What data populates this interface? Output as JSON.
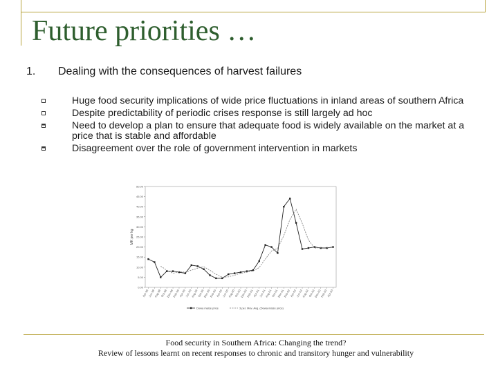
{
  "slide": {
    "title": "Future priorities …",
    "main_item": {
      "number": "1.",
      "text": "Dealing with the consequences of harvest failures"
    },
    "bullets": [
      "Huge food security implications of wide price fluctuations in inland areas of southern Africa",
      "Despite predictability of periodic crises response is still largely ad hoc",
      "Need to develop a plan to ensure that adequate food is widely available on the market at a price that is stable and affordable",
      "Disagreement over the role of government intervention in markets"
    ],
    "footer_line1": "Food security in Southern Africa: Changing the trend?",
    "footer_line2": "Review of lessons learnt on recent responses to chronic and transitory hunger and vulnerability"
  },
  "colors": {
    "title": "#2e5e2e",
    "frame": "#b8a33c"
  },
  "chart_data": {
    "type": "line",
    "ylabel": "MK per kg",
    "ylim": [
      0,
      50
    ],
    "yticks": [
      "50.00",
      "45.00",
      "40.00",
      "35.00",
      "30.00",
      "25.00",
      "20.00",
      "15.00",
      "10.00",
      "5.00",
      "0.00"
    ],
    "categories": [
      "Apr-98",
      "Jun-98",
      "Aug-98",
      "Oct-98",
      "Dec-98",
      "Feb-99",
      "Apr-99",
      "Jun-99",
      "Aug-99",
      "Oct-99",
      "Dec-99",
      "Feb-00",
      "Apr-00",
      "Jun-00",
      "Aug-00",
      "Oct-00",
      "Dec-00",
      "Feb-01",
      "Apr-01",
      "Jun-01",
      "Aug-01",
      "Oct-01",
      "Dec-01",
      "Feb-02",
      "Apr-02",
      "Jun-02",
      "Aug-02",
      "Oct-02",
      "Dec-02",
      "Feb-03",
      "Apr-03"
    ],
    "series": [
      {
        "name": "Dowa maize price",
        "style": "solid-markers",
        "values": [
          14,
          12.5,
          5,
          8,
          8,
          7.5,
          7,
          11,
          10.5,
          9,
          6,
          4.5,
          4.5,
          6.5,
          7,
          7.5,
          8,
          8.5,
          13,
          21,
          20,
          17,
          40,
          44,
          32,
          19,
          19.5,
          20,
          19.5,
          19.5,
          20
        ]
      },
      {
        "name": "3 per. Mov. Avg. (Dowa maize price)",
        "style": "dashed",
        "values": [
          null,
          null,
          10.5,
          8.5,
          7,
          7.8,
          7.5,
          8.5,
          9.5,
          10.2,
          8.5,
          6.5,
          5,
          5.2,
          6,
          7,
          7.5,
          8,
          9.8,
          14,
          18,
          19.3,
          25.7,
          33.7,
          38.7,
          31.7,
          23.5,
          19.5,
          19.7,
          19.7,
          19.7
        ]
      }
    ]
  }
}
